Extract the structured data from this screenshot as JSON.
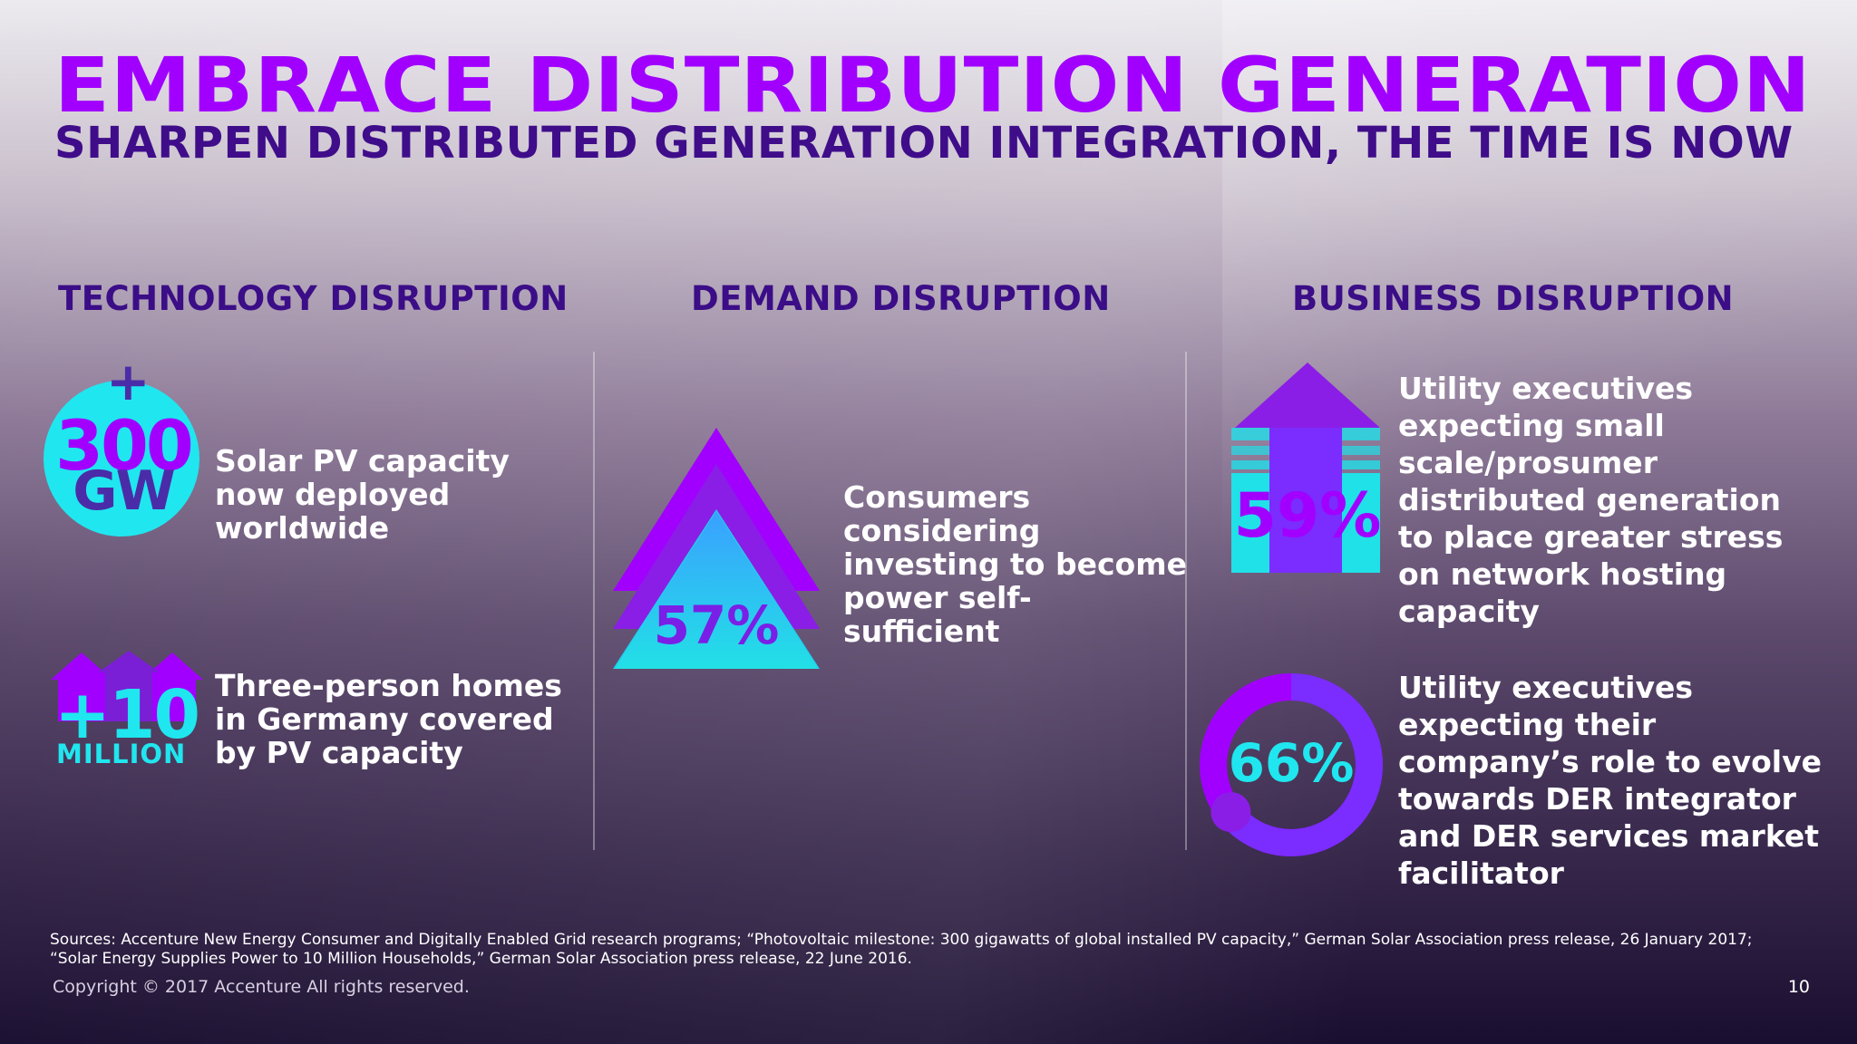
{
  "title": "EMBRACE DISTRIBUTION GENERATION",
  "subtitle": "SHARPEN DISTRIBUTED GENERATION INTEGRATION, THE TIME IS NOW",
  "columns": [
    {
      "heading": "TECHNOLOGY DISRUPTION"
    },
    {
      "heading": "DEMAND DISRUPTION"
    },
    {
      "heading": "BUSINESS DISRUPTION"
    }
  ],
  "technology": {
    "stat1": {
      "plus": "+",
      "value": "300",
      "unit": "GW",
      "text": "Solar PV capacity now deployed worldwide"
    },
    "stat2": {
      "value": "+10",
      "unit": "MILLION",
      "text": "Three-person homes in Germany covered by PV capacity"
    }
  },
  "demand": {
    "stat": {
      "value": "57%",
      "text": "Consumers considering investing to become power self-sufficient"
    }
  },
  "business": {
    "stat1": {
      "value": "59%",
      "text": "Utility executives expecting small scale/prosumer distributed generation to place greater stress on network hosting capacity"
    },
    "stat2": {
      "value": "66%",
      "text": "Utility executives expecting their company’s role to evolve towards DER integrator and DER services market facilitator",
      "fraction": 0.66
    }
  },
  "sources": "Sources: Accenture New Energy Consumer and Digitally Enabled Grid research programs; “Photovoltaic milestone: 300 gigawatts of global installed PV capacity,” German Solar Association press release, 26 January 2017; “Solar Energy Supplies Power to 10 Million Households,” German Solar Association press release, 22 June 2016.",
  "copyright": "Copyright © 2017 Accenture  All rights reserved.",
  "page_number": "10",
  "colors": {
    "purple": "#a100ff",
    "dark_purple": "#3f0d8a",
    "cyan": "#20e0e8",
    "violet": "#7b2cff"
  }
}
